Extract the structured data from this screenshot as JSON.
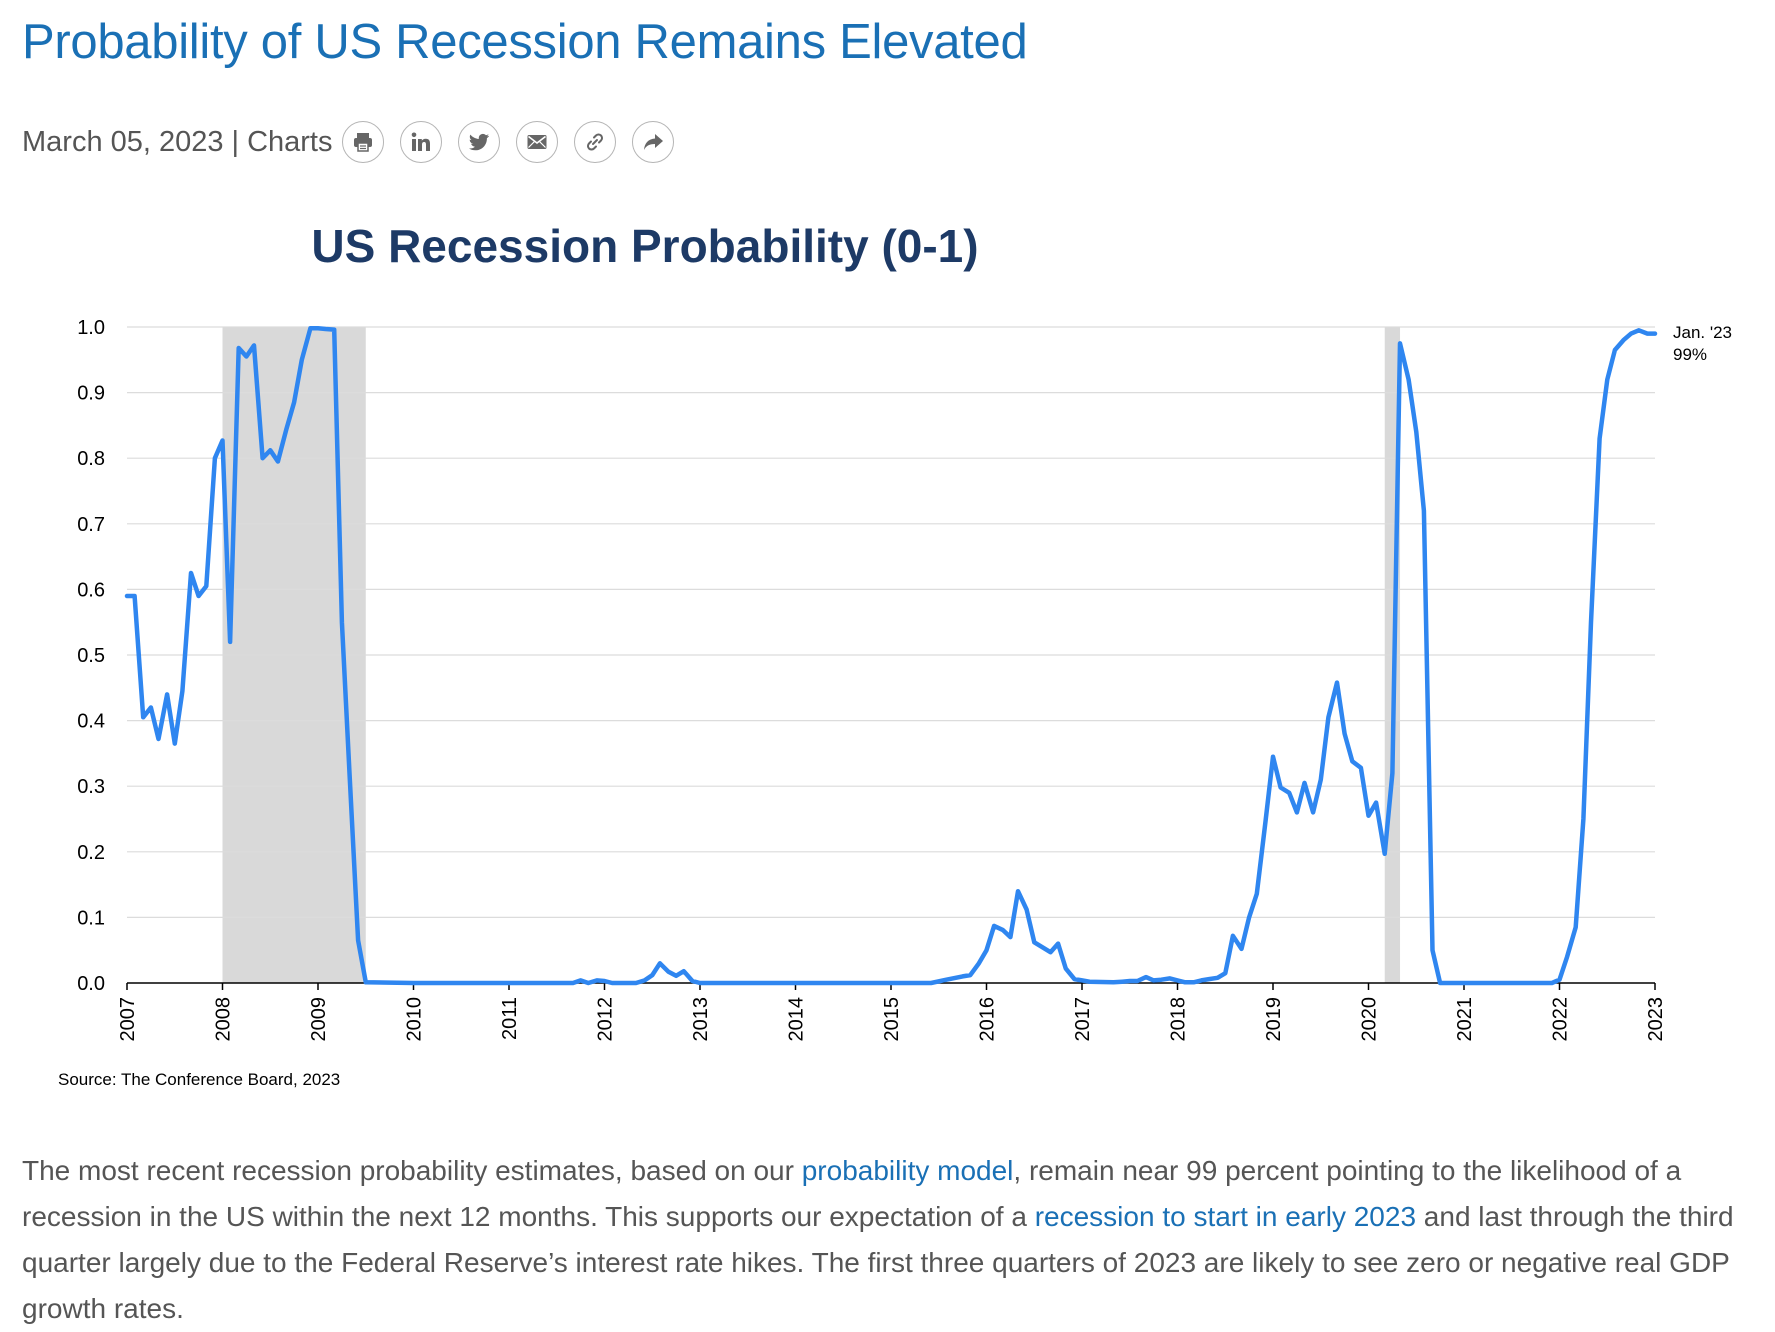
{
  "article": {
    "title": "Probability of US Recession Remains Elevated",
    "date": "March 05, 2023",
    "separator": "|",
    "category": "Charts",
    "share_icons": [
      "print-icon",
      "linkedin-icon",
      "twitter-icon",
      "email-icon",
      "link-icon",
      "share-icon"
    ],
    "colors": {
      "title": "#1a70b5",
      "link": "#1a70b5",
      "text": "#555555"
    }
  },
  "chart_data": {
    "type": "line",
    "title": "US Recession Probability (0-1)",
    "xlabel": "",
    "ylabel": "",
    "xlim": [
      2007,
      2023
    ],
    "ylim": [
      0,
      1
    ],
    "x_ticks": [
      "2007",
      "2008",
      "2009",
      "2010",
      "2011",
      "2012",
      "2013",
      "2014",
      "2015",
      "2016",
      "2017",
      "2018",
      "2019",
      "2020",
      "2021",
      "2022",
      "2023"
    ],
    "y_ticks": [
      "0.0",
      "0.1",
      "0.2",
      "0.3",
      "0.4",
      "0.5",
      "0.6",
      "0.7",
      "0.8",
      "0.9",
      "1.0"
    ],
    "grid": true,
    "recession_periods": [
      [
        2008.0,
        2009.5
      ],
      [
        2020.17,
        2020.33
      ]
    ],
    "annotation": {
      "x": 2023.0,
      "y": 0.99,
      "line1": "Jan. '23",
      "line2": "99%"
    },
    "series": [
      {
        "color": "#2f86f0",
        "points": [
          [
            2007.0,
            0.59
          ],
          [
            2007.08,
            0.59
          ],
          [
            2007.17,
            0.405
          ],
          [
            2007.25,
            0.42
          ],
          [
            2007.33,
            0.372
          ],
          [
            2007.42,
            0.44
          ],
          [
            2007.5,
            0.365
          ],
          [
            2007.58,
            0.445
          ],
          [
            2007.67,
            0.625
          ],
          [
            2007.75,
            0.59
          ],
          [
            2007.83,
            0.605
          ],
          [
            2007.92,
            0.8
          ],
          [
            2008.0,
            0.827
          ],
          [
            2008.08,
            0.52
          ],
          [
            2008.17,
            0.968
          ],
          [
            2008.25,
            0.955
          ],
          [
            2008.33,
            0.972
          ],
          [
            2008.42,
            0.8
          ],
          [
            2008.5,
            0.812
          ],
          [
            2008.58,
            0.795
          ],
          [
            2008.67,
            0.845
          ],
          [
            2008.75,
            0.885
          ],
          [
            2008.83,
            0.95
          ],
          [
            2008.92,
            0.998
          ],
          [
            2009.0,
            0.998
          ],
          [
            2009.08,
            0.997
          ],
          [
            2009.17,
            0.996
          ],
          [
            2009.25,
            0.55
          ],
          [
            2009.33,
            0.32
          ],
          [
            2009.42,
            0.065
          ],
          [
            2009.5,
            0.001
          ],
          [
            2010.0,
            0.0
          ],
          [
            2011.0,
            0.0
          ],
          [
            2011.67,
            0.0
          ],
          [
            2011.75,
            0.004
          ],
          [
            2011.83,
            0.0
          ],
          [
            2011.92,
            0.004
          ],
          [
            2012.0,
            0.003
          ],
          [
            2012.08,
            0.0
          ],
          [
            2012.33,
            0.0
          ],
          [
            2012.42,
            0.004
          ],
          [
            2012.5,
            0.012
          ],
          [
            2012.58,
            0.03
          ],
          [
            2012.67,
            0.017
          ],
          [
            2012.75,
            0.011
          ],
          [
            2012.83,
            0.018
          ],
          [
            2012.92,
            0.003
          ],
          [
            2013.0,
            0.0
          ],
          [
            2014.0,
            0.0
          ],
          [
            2015.0,
            0.0
          ],
          [
            2015.42,
            0.0
          ],
          [
            2015.58,
            0.005
          ],
          [
            2015.75,
            0.01
          ],
          [
            2015.83,
            0.012
          ],
          [
            2015.92,
            0.03
          ],
          [
            2016.0,
            0.05
          ],
          [
            2016.08,
            0.087
          ],
          [
            2016.17,
            0.081
          ],
          [
            2016.25,
            0.07
          ],
          [
            2016.33,
            0.14
          ],
          [
            2016.42,
            0.112
          ],
          [
            2016.5,
            0.062
          ],
          [
            2016.58,
            0.055
          ],
          [
            2016.67,
            0.047
          ],
          [
            2016.75,
            0.06
          ],
          [
            2016.83,
            0.022
          ],
          [
            2016.92,
            0.006
          ],
          [
            2017.0,
            0.004
          ],
          [
            2017.08,
            0.002
          ],
          [
            2017.33,
            0.001
          ],
          [
            2017.42,
            0.002
          ],
          [
            2017.5,
            0.003
          ],
          [
            2017.58,
            0.003
          ],
          [
            2017.67,
            0.009
          ],
          [
            2017.75,
            0.004
          ],
          [
            2017.83,
            0.005
          ],
          [
            2017.92,
            0.007
          ],
          [
            2018.0,
            0.004
          ],
          [
            2018.08,
            0.001
          ],
          [
            2018.17,
            0.001
          ],
          [
            2018.25,
            0.004
          ],
          [
            2018.33,
            0.006
          ],
          [
            2018.42,
            0.008
          ],
          [
            2018.5,
            0.015
          ],
          [
            2018.58,
            0.072
          ],
          [
            2018.67,
            0.052
          ],
          [
            2018.75,
            0.1
          ],
          [
            2018.83,
            0.136
          ],
          [
            2018.92,
            0.245
          ],
          [
            2019.0,
            0.345
          ],
          [
            2019.08,
            0.298
          ],
          [
            2019.17,
            0.29
          ],
          [
            2019.25,
            0.26
          ],
          [
            2019.33,
            0.305
          ],
          [
            2019.42,
            0.26
          ],
          [
            2019.5,
            0.31
          ],
          [
            2019.58,
            0.405
          ],
          [
            2019.67,
            0.458
          ],
          [
            2019.75,
            0.38
          ],
          [
            2019.83,
            0.338
          ],
          [
            2019.92,
            0.328
          ],
          [
            2020.0,
            0.255
          ],
          [
            2020.08,
            0.275
          ],
          [
            2020.17,
            0.197
          ],
          [
            2020.25,
            0.32
          ],
          [
            2020.33,
            0.975
          ],
          [
            2020.42,
            0.92
          ],
          [
            2020.5,
            0.84
          ],
          [
            2020.58,
            0.72
          ],
          [
            2020.67,
            0.05
          ],
          [
            2020.75,
            0.0
          ],
          [
            2021.0,
            0.0
          ],
          [
            2021.92,
            0.0
          ],
          [
            2022.0,
            0.005
          ],
          [
            2022.08,
            0.04
          ],
          [
            2022.17,
            0.085
          ],
          [
            2022.25,
            0.25
          ],
          [
            2022.33,
            0.55
          ],
          [
            2022.42,
            0.83
          ],
          [
            2022.5,
            0.92
          ],
          [
            2022.58,
            0.965
          ],
          [
            2022.67,
            0.98
          ],
          [
            2022.75,
            0.99
          ],
          [
            2022.83,
            0.995
          ],
          [
            2022.92,
            0.99
          ],
          [
            2023.0,
            0.99
          ]
        ]
      }
    ],
    "source": "Source: The Conference Board, 2023"
  },
  "paragraph": {
    "part1": "The most recent recession probability estimates, based on our ",
    "link1": "probability model",
    "part2": ", remain near 99 percent pointing to the likelihood of a recession in the US within the next 12 months. This supports our expectation of a ",
    "link2": "recession to start in early 2023",
    "part3": " and last through the third quarter largely due to the Federal Reserve’s interest rate hikes. The first three quarters of 2023 are likely to see zero or negative real GDP growth rates."
  }
}
